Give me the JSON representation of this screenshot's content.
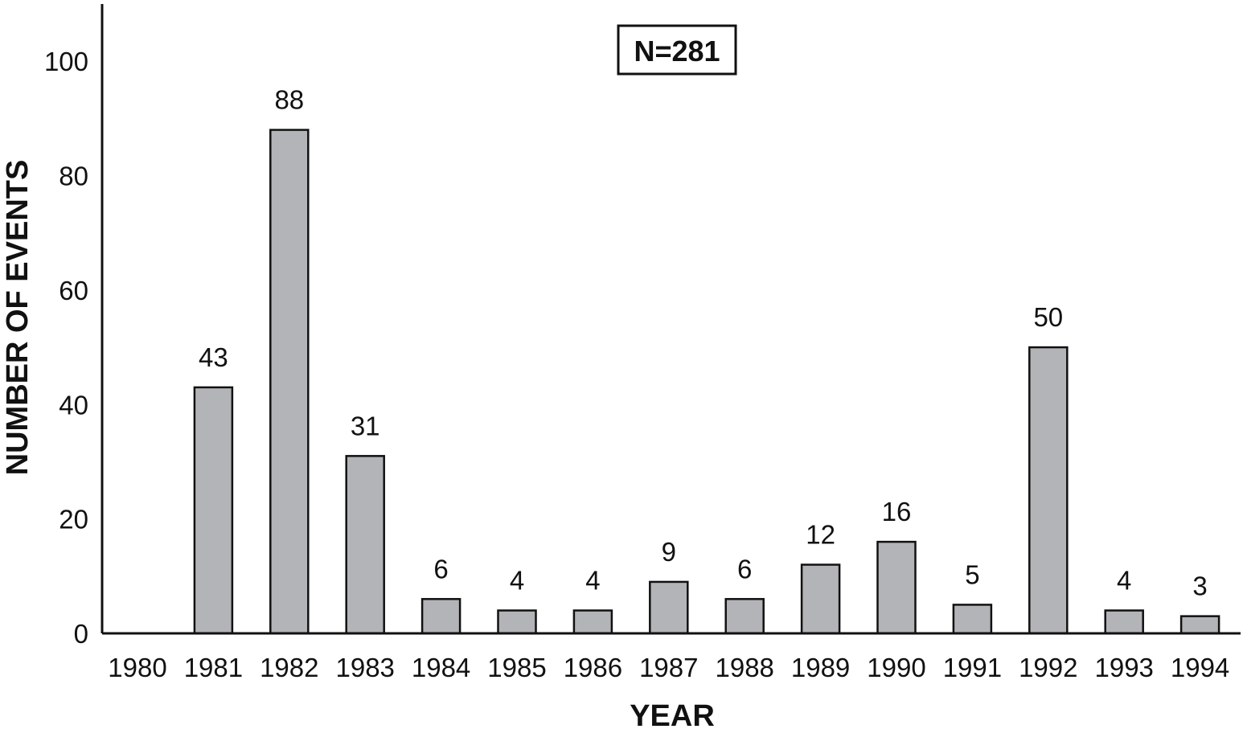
{
  "chart_data": {
    "type": "bar",
    "categories": [
      "1980",
      "1981",
      "1982",
      "1983",
      "1984",
      "1985",
      "1986",
      "1987",
      "1988",
      "1989",
      "1990",
      "1991",
      "1992",
      "1993",
      "1994"
    ],
    "values": [
      0,
      43,
      88,
      31,
      6,
      4,
      4,
      9,
      6,
      12,
      16,
      5,
      50,
      4,
      3
    ],
    "data_labels": [
      "",
      "43",
      "88",
      "31",
      "6",
      "4",
      "4",
      "9",
      "6",
      "12",
      "16",
      "5",
      "50",
      "4",
      "3"
    ],
    "xlabel": "YEAR",
    "ylabel": "NUMBER OF EVENTS",
    "annotation": "N=281",
    "ylim": [
      0,
      110
    ],
    "yticks": [
      0,
      20,
      40,
      60,
      80,
      100
    ],
    "grid": false,
    "colors": {
      "bar_fill": "#b3b4b8",
      "bar_stroke": "#111111",
      "axis": "#111111"
    }
  }
}
